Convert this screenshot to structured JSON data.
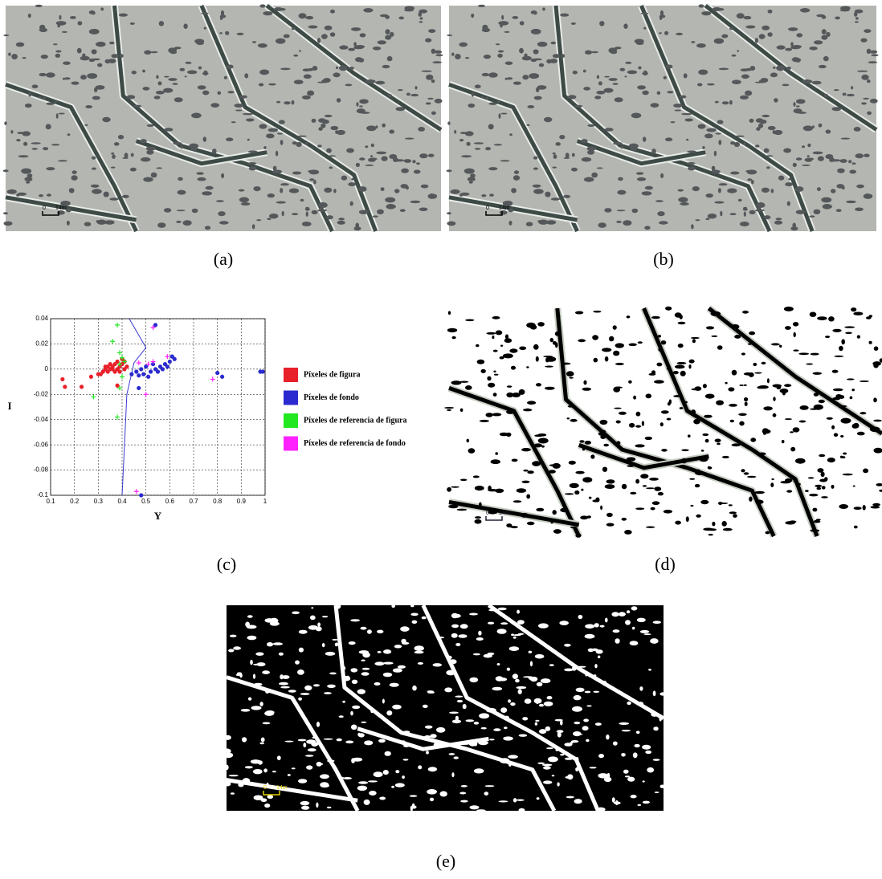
{
  "panels": [
    {
      "caption": "(a)",
      "scale": [
        "0",
        "14m"
      ]
    },
    {
      "caption": "(b)",
      "scale": [
        "0",
        "14m"
      ]
    },
    {
      "caption": "(c)"
    },
    {
      "caption": "(d)",
      "scale": [
        "0",
        "14m"
      ]
    },
    {
      "caption": "(e)",
      "scale": [
        "0",
        "14m"
      ]
    }
  ],
  "chart_data": {
    "type": "scatter",
    "xlabel": "Y",
    "ylabel": "I",
    "xlim": [
      0.1,
      1
    ],
    "ylim": [
      -0.1,
      0.04
    ],
    "xticks": [
      0.1,
      0.2,
      0.3,
      0.4,
      0.5,
      0.6,
      0.7,
      0.8,
      0.9,
      1
    ],
    "yticks": [
      -0.1,
      -0.08,
      -0.06,
      -0.04,
      -0.02,
      0,
      0.02,
      0.04
    ],
    "grid": true,
    "series": [
      {
        "name": "Píxeles de figura",
        "color": "#e8202a",
        "marker": "dot",
        "x": [
          0.15,
          0.16,
          0.23,
          0.27,
          0.3,
          0.31,
          0.32,
          0.33,
          0.33,
          0.34,
          0.34,
          0.35,
          0.35,
          0.36,
          0.36,
          0.37,
          0.37,
          0.38,
          0.38,
          0.39,
          0.39,
          0.4,
          0.4,
          0.41,
          0.41,
          0.42,
          0.38
        ],
        "y": [
          -0.008,
          -0.014,
          -0.014,
          -0.006,
          -0.004,
          -0.004,
          -0.002,
          0,
          0.002,
          -0.002,
          0.002,
          0,
          0.004,
          0,
          0.002,
          -0.002,
          0.004,
          0,
          0.006,
          0.002,
          -0.002,
          0.004,
          0.008,
          0.006,
          0,
          0.002,
          -0.013
        ]
      },
      {
        "name": "Píxeles de fondo",
        "color": "#2a2ad0",
        "marker": "dot",
        "x": [
          0.44,
          0.46,
          0.47,
          0.48,
          0.49,
          0.5,
          0.51,
          0.52,
          0.53,
          0.54,
          0.55,
          0.56,
          0.57,
          0.58,
          0.59,
          0.6,
          0.61,
          0.62,
          0.8,
          0.82,
          0.98,
          0.99,
          0.48,
          0.47,
          0.54
        ],
        "y": [
          -0.004,
          -0.002,
          -0.015,
          0,
          -0.004,
          0.002,
          -0.006,
          -0.002,
          0.004,
          0,
          -0.002,
          0.002,
          0,
          0.004,
          0.002,
          0.006,
          0.01,
          0.008,
          -0.003,
          -0.006,
          -0.002,
          -0.002,
          -0.1,
          -0.005,
          0.035
        ]
      },
      {
        "name": "Píxeles de referencia de figura",
        "color": "#22e822",
        "marker": "plus",
        "x": [
          0.36,
          0.38,
          0.39,
          0.39,
          0.4,
          0.4,
          0.39,
          0.28,
          0.38,
          0.41
        ],
        "y": [
          0.022,
          0.035,
          0.013,
          0.004,
          0.009,
          -0.006,
          -0.015,
          -0.022,
          -0.038,
          0.006
        ]
      },
      {
        "name": "Píxeles de referencia de fondo",
        "color": "#ff22ff",
        "marker": "plus",
        "x": [
          0.46,
          0.47,
          0.5,
          0.51,
          0.53,
          0.59,
          0.78,
          0.53
        ],
        "y": [
          -0.097,
          0.005,
          -0.02,
          0.004,
          0.033,
          0.01,
          -0.008,
          0.006
        ]
      }
    ],
    "boundary": {
      "color": "#3a3ad0",
      "x": [
        0.43,
        0.5,
        0.45,
        0.42,
        0.41,
        0.4
      ],
      "y": [
        0.04,
        0.017,
        0.005,
        -0.02,
        -0.06,
        -0.1
      ]
    }
  }
}
